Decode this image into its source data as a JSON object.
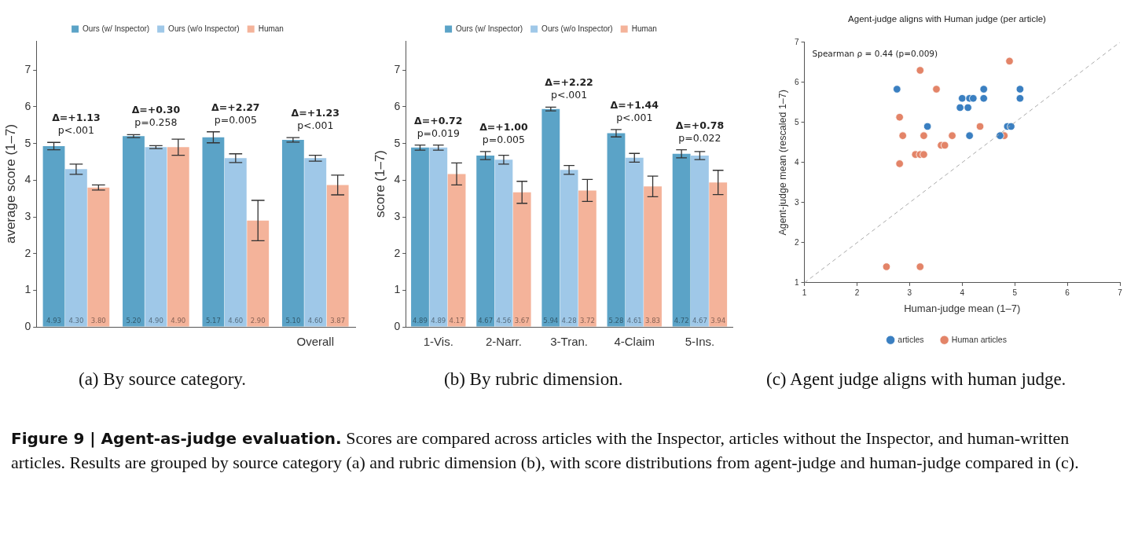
{
  "chart_data": [
    {
      "type": "bar",
      "ylabel": "average score (1–7)",
      "categories": [
        null,
        null,
        null,
        "Overall"
      ],
      "ylim": [
        0,
        7.8
      ],
      "yticks": [
        0,
        1,
        2,
        3,
        4,
        5,
        6,
        7
      ],
      "legend": "top",
      "data_labels": true,
      "series": [
        {
          "name": "Ours (w/ Inspector)",
          "color": "#5ba3c7",
          "values": [
            4.93,
            5.2,
            5.17,
            5.1
          ],
          "errors": [
            0.1,
            0.04,
            0.15,
            0.06
          ],
          "value_labels": [
            "4.93",
            "5.20",
            "5.17",
            "5.10"
          ]
        },
        {
          "name": "Ours (w/o Inspector)",
          "color": "#9fc8e8",
          "values": [
            4.3,
            4.9,
            4.6,
            4.6
          ],
          "errors": [
            0.14,
            0.04,
            0.12,
            0.08
          ],
          "value_labels": [
            "4.30",
            "4.90",
            "4.60",
            "4.60"
          ]
        },
        {
          "name": "Human",
          "color": "#f4b39a",
          "values": [
            3.8,
            4.9,
            2.9,
            3.87
          ],
          "errors": [
            0.07,
            0.22,
            0.55,
            0.27
          ],
          "value_labels": [
            "3.80",
            "4.90",
            "2.90",
            "3.87"
          ]
        }
      ],
      "annotations": [
        "Δ=+1.13\np<.001",
        "Δ=+0.30\np=0.258",
        "Δ=+2.27\np=0.005",
        "Δ=+1.23\np<.001",
        "(a) By source category.",
        "Figure 9 | Agent-as-judge evaluation.",
        "Scores are compared across articles with the Inspector, articles without the Inspector, and human-written articles. Results are grouped by source category (a) and rubric dimension (b), with score distributions from agent-judge and human-judge compared in (c)."
      ]
    },
    {
      "type": "bar",
      "ylabel": "score (1–7)",
      "categories": [
        "1-Vis.",
        "2-Narr.",
        "3-Tran.",
        "4-Claim",
        "5-Ins."
      ],
      "ylim": [
        0,
        7.8
      ],
      "yticks": [
        0,
        1,
        2,
        3,
        4,
        5,
        6,
        7
      ],
      "legend": "top",
      "data_labels": true,
      "series": [
        {
          "name": "Ours (w/ Inspector)",
          "color": "#5ba3c7",
          "values": [
            4.89,
            4.67,
            5.94,
            5.28,
            4.72
          ],
          "errors": [
            0.07,
            0.11,
            0.05,
            0.1,
            0.11
          ],
          "value_labels": [
            "4.89",
            "4.67",
            "5.94",
            "5.28",
            "4.72"
          ]
        },
        {
          "name": "Ours (w/o Inspector)",
          "color": "#9fc8e8",
          "values": [
            4.89,
            4.56,
            4.28,
            4.61,
            4.67
          ],
          "errors": [
            0.07,
            0.12,
            0.12,
            0.12,
            0.11
          ],
          "value_labels": [
            "4.89",
            "4.56",
            "4.28",
            "4.61",
            "4.67"
          ]
        },
        {
          "name": "Human",
          "color": "#f4b39a",
          "values": [
            4.17,
            3.67,
            3.72,
            3.83,
            3.94
          ],
          "errors": [
            0.3,
            0.3,
            0.3,
            0.28,
            0.33
          ],
          "value_labels": [
            "4.17",
            "3.67",
            "3.72",
            "3.83",
            "3.94"
          ]
        }
      ],
      "annotations": [
        "Δ=+0.72\np=0.019",
        "Δ=+1.00\np=0.005",
        "Δ=+2.22\np<.001",
        "Δ=+1.44\np<.001",
        "Δ=+0.78\np=0.022",
        "(b) By rubric dimension."
      ]
    },
    {
      "type": "scatter",
      "title": "Agent-judge aligns with Human judge (per article)",
      "xlabel": "Human-judge mean (1–7)",
      "ylabel": "Agent-judge mean (rescaled 1–7)",
      "xlim": [
        1,
        7
      ],
      "ylim": [
        1,
        7
      ],
      "xticks": [
        1,
        2,
        3,
        4,
        5,
        6,
        7
      ],
      "yticks": [
        1,
        2,
        3,
        4,
        5,
        6,
        7
      ],
      "legend": "bottom",
      "marker": "circle",
      "series": [
        {
          "type": "line",
          "color": "#aaaaaa",
          "line_style": "dashed",
          "marker": "none",
          "x": [
            1,
            7
          ],
          "values": [
            1,
            7
          ]
        },
        {
          "name": "articles",
          "color": "#3a7fc1",
          "x": [
            2.76,
            3.34,
            4.0,
            4.14,
            4.21,
            3.96,
            4.11,
            4.41,
            4.41,
            4.14,
            5.1,
            5.1,
            4.72,
            4.86,
            4.93
          ],
          "values": [
            5.83,
            4.9,
            5.6,
            5.6,
            5.6,
            5.37,
            5.37,
            5.83,
            5.6,
            4.67,
            5.83,
            5.6,
            4.67,
            4.9,
            4.9
          ]
        },
        {
          "name": "Human articles",
          "color": "#e38468",
          "x": [
            3.2,
            4.9,
            3.51,
            2.81,
            2.87,
            3.27,
            3.81,
            4.34,
            4.8,
            3.6,
            3.67,
            3.11,
            3.2,
            3.27,
            2.81,
            2.56,
            3.2
          ],
          "values": [
            6.3,
            6.53,
            5.83,
            5.13,
            4.67,
            4.67,
            4.67,
            4.9,
            4.67,
            4.43,
            4.43,
            4.2,
            4.2,
            4.2,
            3.97,
            1.4,
            1.4
          ]
        }
      ],
      "annotations": [
        "Spearman ρ = 0.44 (p=0.009)",
        "(c) Agent judge aligns with human judge."
      ]
    }
  ]
}
